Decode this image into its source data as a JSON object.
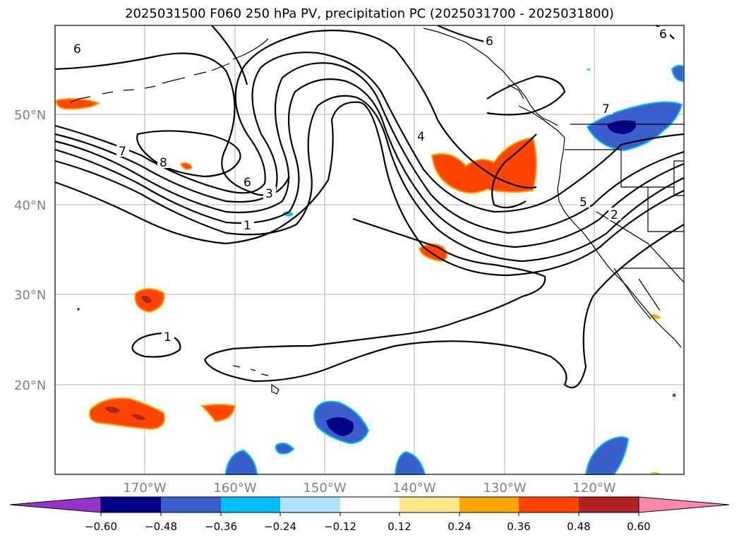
{
  "title": "2025031500 F060 250 hPa PV, precipitation PC (2025031700 - 2025031800)",
  "map": {
    "lat_labels": [
      "50°N",
      "40°N",
      "30°N",
      "20°N"
    ],
    "lon_labels": [
      "170°W",
      "160°W",
      "150°W",
      "140°W",
      "130°W",
      "120°W"
    ],
    "gridlines": true,
    "pv_contour_labels": [
      "6",
      "6",
      "6",
      "7",
      "8",
      "6",
      "3",
      "1",
      "4",
      "7",
      "5",
      "2",
      "1"
    ]
  },
  "colorbar": {
    "ticks": [
      "−0.60",
      "−0.48",
      "−0.36",
      "−0.24",
      "−0.12",
      "0.12",
      "0.24",
      "0.36",
      "0.48",
      "0.60"
    ],
    "colors": [
      "#9932CC",
      "#00008B",
      "#3A5FCD",
      "#00BFFF",
      "#B0E2FF",
      "#FFFFFF",
      "#FFE88A",
      "#FFA500",
      "#FF4500",
      "#B22222",
      "#FF88AA"
    ]
  }
}
